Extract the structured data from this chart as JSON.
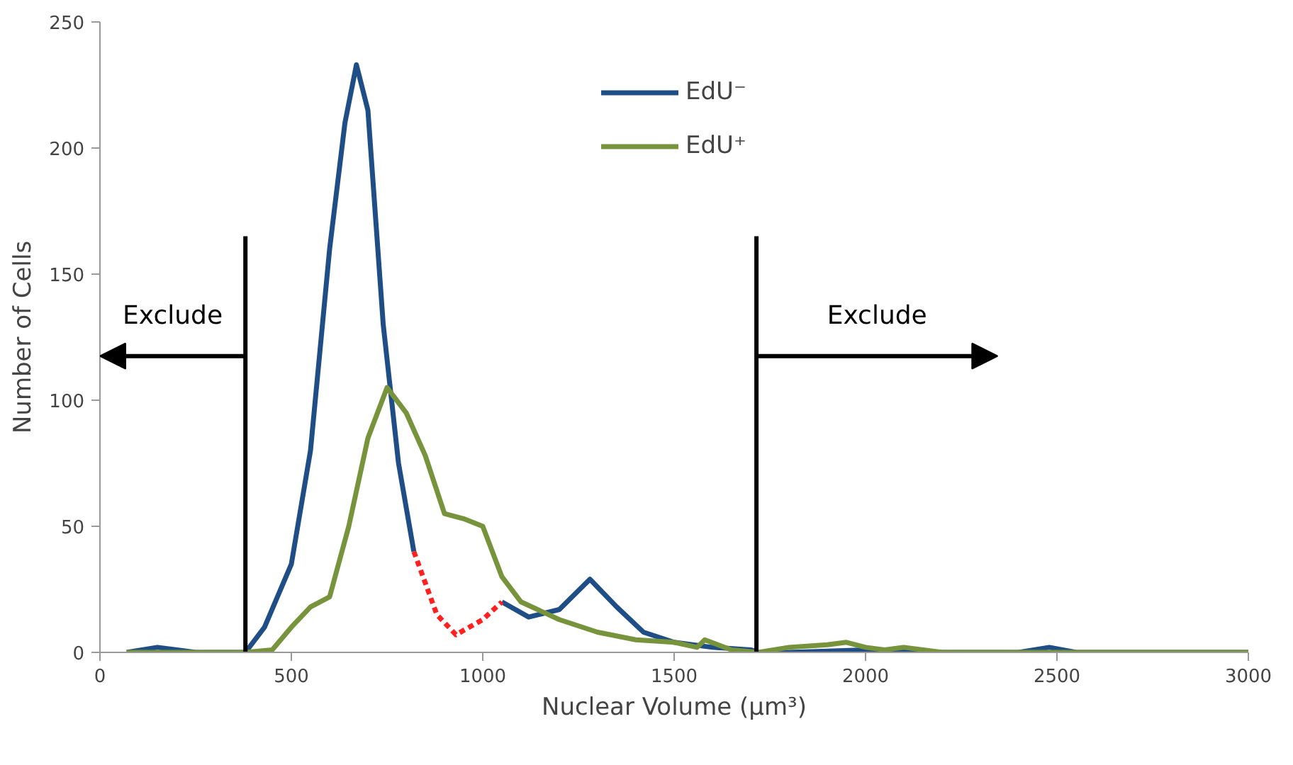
{
  "chart_data": {
    "type": "line",
    "xlabel": "Nuclear Volume (µm³)",
    "ylabel": "Number of Cells",
    "xlim": [
      0,
      3000
    ],
    "ylim": [
      0,
      250
    ],
    "xticks": [
      0,
      500,
      1000,
      1500,
      2000,
      2500,
      3000
    ],
    "yticks": [
      0,
      50,
      100,
      150,
      200,
      250
    ],
    "grid": false,
    "legend": "top",
    "line_style": "solid",
    "series": [
      {
        "name": "EdU⁻",
        "color": "#1f4e87",
        "x": [
          70,
          150,
          250,
          380,
          430,
          500,
          550,
          600,
          640,
          670,
          700,
          740,
          780,
          820,
          935,
          1050,
          1120,
          1200,
          1280,
          1350,
          1420,
          1500,
          1600,
          1700,
          1720,
          1800,
          2000,
          2100,
          2200,
          2400,
          2480,
          2550,
          3000
        ],
        "values": [
          0,
          2,
          0,
          0,
          10,
          35,
          80,
          160,
          210,
          233,
          215,
          130,
          75,
          40,
          null,
          20,
          14,
          17,
          29,
          18,
          8,
          4,
          2,
          1,
          0,
          0,
          1,
          1,
          0,
          0,
          2,
          0,
          0
        ]
      },
      {
        "name": "EdU⁺",
        "color": "#77933c",
        "x": [
          70,
          380,
          450,
          500,
          550,
          600,
          650,
          700,
          750,
          800,
          850,
          900,
          950,
          1000,
          1050,
          1100,
          1200,
          1300,
          1400,
          1500,
          1560,
          1580,
          1650,
          1720,
          1800,
          1900,
          1950,
          2000,
          2050,
          2100,
          2200,
          3000
        ],
        "values": [
          0,
          0,
          1,
          10,
          18,
          22,
          50,
          85,
          105,
          95,
          78,
          55,
          53,
          50,
          30,
          20,
          13,
          8,
          5,
          4,
          2,
          5,
          1,
          0,
          2,
          3,
          4,
          2,
          1,
          2,
          0,
          0
        ]
      },
      {
        "color": "#ff2020",
        "line_style": "dashed",
        "x": [
          820,
          880,
          930,
          1000,
          1050
        ],
        "values": [
          40,
          15,
          7,
          13,
          20
        ]
      }
    ],
    "ref_lines": [
      {
        "axis": "x",
        "value": 380,
        "label": "Exclude",
        "color": "#000000"
      },
      {
        "axis": "x",
        "value": 1715,
        "label": "Exclude",
        "color": "#000000"
      }
    ]
  }
}
